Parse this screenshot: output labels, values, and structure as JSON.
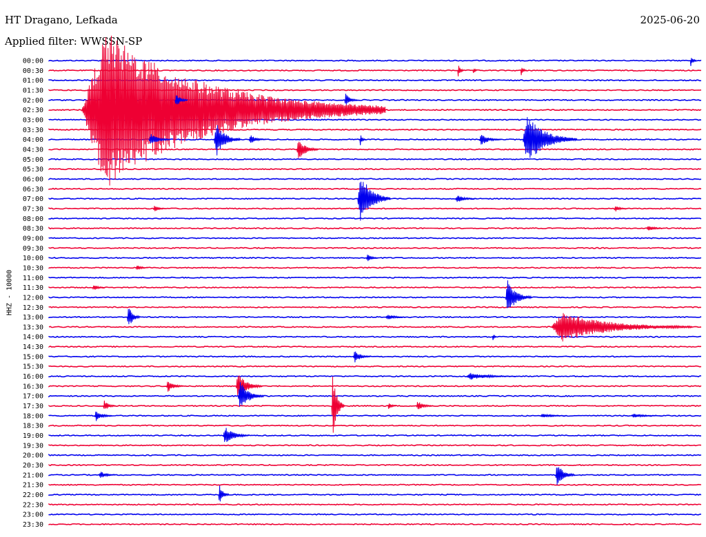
{
  "header": {
    "title": "HT Dragano, Lefkada",
    "date": "2025-06-20",
    "filter": "Applied filter: WWSSN-SP",
    "channel_label": "HHZ - 10000"
  },
  "colors": {
    "blue": "#0000ee",
    "red": "#ee0033"
  },
  "chart_data": {
    "type": "line",
    "title": "HT Dragano, Lefkada",
    "subtitle": "Applied filter: WWSSN-SP",
    "ylabel": "HHZ - 10000",
    "xlabel": "",
    "grid": false,
    "trace_duration_minutes": 30,
    "rows": [
      "00:00",
      "00:30",
      "01:00",
      "01:30",
      "02:00",
      "02:30",
      "03:00",
      "03:30",
      "04:00",
      "04:30",
      "05:00",
      "05:30",
      "06:00",
      "06:30",
      "07:00",
      "07:30",
      "08:00",
      "08:30",
      "09:00",
      "09:30",
      "10:00",
      "10:30",
      "11:00",
      "11:30",
      "12:00",
      "12:30",
      "13:00",
      "13:30",
      "14:00",
      "14:30",
      "15:00",
      "15:30",
      "16:00",
      "16:30",
      "17:00",
      "17:30",
      "18:00",
      "18:30",
      "19:00",
      "19:30",
      "20:00",
      "20:30",
      "21:00",
      "21:30",
      "22:00",
      "22:30",
      "23:00",
      "23:30"
    ],
    "colors_cycle": [
      "blue",
      "red"
    ],
    "events": [
      {
        "row": "02:30",
        "minute": 1.5,
        "amplitude": 16,
        "duration_min": 14,
        "label": "large"
      },
      {
        "row": "00:00",
        "minute": 29.5,
        "amplitude": 1.2,
        "duration_min": 0.3
      },
      {
        "row": "00:30",
        "minute": 18.8,
        "amplitude": 1.4,
        "duration_min": 0.3
      },
      {
        "row": "00:30",
        "minute": 19.5,
        "amplitude": 1.0,
        "duration_min": 0.2
      },
      {
        "row": "00:30",
        "minute": 21.7,
        "amplitude": 1.0,
        "duration_min": 0.3
      },
      {
        "row": "02:00",
        "minute": 5.8,
        "amplitude": 1.4,
        "duration_min": 0.6
      },
      {
        "row": "02:00",
        "minute": 13.6,
        "amplitude": 1.4,
        "duration_min": 0.6
      },
      {
        "row": "04:00",
        "minute": 7.6,
        "amplitude": 3.5,
        "duration_min": 1.2
      },
      {
        "row": "04:00",
        "minute": 4.6,
        "amplitude": 1.2,
        "duration_min": 1.0
      },
      {
        "row": "04:00",
        "minute": 9.2,
        "amplitude": 1.0,
        "duration_min": 0.8
      },
      {
        "row": "04:00",
        "minute": 14.3,
        "amplitude": 1.2,
        "duration_min": 0.3
      },
      {
        "row": "04:00",
        "minute": 19.8,
        "amplitude": 1.2,
        "duration_min": 1.0
      },
      {
        "row": "04:00",
        "minute": 21.8,
        "amplitude": 5.0,
        "duration_min": 2.5
      },
      {
        "row": "04:30",
        "minute": 11.4,
        "amplitude": 2.2,
        "duration_min": 1.0
      },
      {
        "row": "07:00",
        "minute": 14.2,
        "amplitude": 5.5,
        "duration_min": 1.5
      },
      {
        "row": "07:00",
        "minute": 18.7,
        "amplitude": 0.8,
        "duration_min": 1.0
      },
      {
        "row": "07:30",
        "minute": 4.8,
        "amplitude": 0.7,
        "duration_min": 0.6
      },
      {
        "row": "07:30",
        "minute": 26.0,
        "amplitude": 0.7,
        "duration_min": 0.6
      },
      {
        "row": "08:30",
        "minute": 27.5,
        "amplitude": 0.7,
        "duration_min": 0.8
      },
      {
        "row": "10:00",
        "minute": 14.6,
        "amplitude": 0.8,
        "duration_min": 0.6
      },
      {
        "row": "10:30",
        "minute": 4.0,
        "amplitude": 0.6,
        "duration_min": 0.6
      },
      {
        "row": "11:30",
        "minute": 2.0,
        "amplitude": 0.7,
        "duration_min": 0.6
      },
      {
        "row": "12:00",
        "minute": 21.0,
        "amplitude": 3.5,
        "duration_min": 1.2
      },
      {
        "row": "13:00",
        "minute": 3.6,
        "amplitude": 2.5,
        "duration_min": 0.6
      },
      {
        "row": "13:00",
        "minute": 15.5,
        "amplitude": 0.6,
        "duration_min": 1.0
      },
      {
        "row": "13:30",
        "minute": 23.1,
        "amplitude": 3.0,
        "duration_min": 6.5
      },
      {
        "row": "14:00",
        "minute": 20.4,
        "amplitude": 1.0,
        "duration_min": 0.2
      },
      {
        "row": "15:00",
        "minute": 14.0,
        "amplitude": 1.3,
        "duration_min": 0.8
      },
      {
        "row": "16:00",
        "minute": 19.2,
        "amplitude": 0.7,
        "duration_min": 2.4
      },
      {
        "row": "16:30",
        "minute": 5.4,
        "amplitude": 1.3,
        "duration_min": 0.8
      },
      {
        "row": "16:30",
        "minute": 8.6,
        "amplitude": 2.7,
        "duration_min": 1.2
      },
      {
        "row": "17:00",
        "minute": 8.7,
        "amplitude": 3.0,
        "duration_min": 1.2
      },
      {
        "row": "17:30",
        "minute": 2.5,
        "amplitude": 1.2,
        "duration_min": 0.6
      },
      {
        "row": "17:30",
        "minute": 13.0,
        "amplitude": 6.5,
        "duration_min": 0.6
      },
      {
        "row": "17:30",
        "minute": 15.6,
        "amplitude": 0.8,
        "duration_min": 0.4
      },
      {
        "row": "17:30",
        "minute": 16.9,
        "amplitude": 1.0,
        "duration_min": 0.8
      },
      {
        "row": "18:00",
        "minute": 2.1,
        "amplitude": 1.2,
        "duration_min": 0.8
      },
      {
        "row": "18:00",
        "minute": 22.6,
        "amplitude": 0.5,
        "duration_min": 1.2
      },
      {
        "row": "18:00",
        "minute": 26.8,
        "amplitude": 0.5,
        "duration_min": 1.4
      },
      {
        "row": "19:00",
        "minute": 8.0,
        "amplitude": 1.8,
        "duration_min": 1.2
      },
      {
        "row": "21:00",
        "minute": 2.3,
        "amplitude": 0.8,
        "duration_min": 0.8
      },
      {
        "row": "21:00",
        "minute": 23.3,
        "amplitude": 2.5,
        "duration_min": 0.9
      },
      {
        "row": "22:00",
        "minute": 7.8,
        "amplitude": 2.0,
        "duration_min": 0.5
      }
    ]
  }
}
